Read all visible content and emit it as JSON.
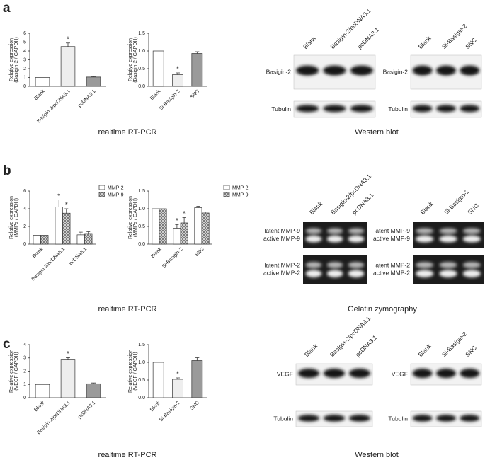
{
  "chart_data": [
    {
      "type": "bar",
      "ylabel": [
        "Relative expression",
        "(Basigin-2 / GAPDH)"
      ],
      "categories": [
        "Blank",
        "Basigin-2/pcDNA3.1",
        "pcDNA3.1"
      ],
      "values": [
        1,
        4.5,
        1.05
      ],
      "errors": [
        null,
        0.4,
        0.07
      ],
      "colors": [
        "#ffffff",
        "#eeeeee",
        "#9a9a9a"
      ],
      "ylim": [
        0,
        6
      ],
      "yticks": [
        0,
        1,
        2,
        3,
        4,
        5,
        6
      ],
      "annotations": [
        {
          "text": "*",
          "x": "Basigin-2/pcDNA3.1"
        }
      ]
    },
    {
      "type": "bar",
      "ylabel": [
        "Relative expression",
        "(Basigin-2 / GAPDH)"
      ],
      "categories": [
        "Blank",
        "Si-Basigin-2",
        "SNC"
      ],
      "values": [
        1,
        0.33,
        0.93
      ],
      "errors": [
        null,
        0.05,
        0.05
      ],
      "colors": [
        "#ffffff",
        "#eeeeee",
        "#9a9a9a"
      ],
      "ylim": [
        0,
        1.5
      ],
      "yticks": [
        {
          "value": 0,
          "label": "0.0"
        },
        0.5,
        {
          "value": 1,
          "label": "1.0"
        },
        1.5
      ],
      "annotations": [
        {
          "text": "*",
          "x": "Si-Basigin-2"
        }
      ]
    },
    {
      "type": "grouped-bar",
      "ylabel": [
        "Relative expression",
        "(MMPs / GAPDH)"
      ],
      "categories": [
        "Blank",
        "Basigin-2/pcDNA3.1",
        "pcDNA3.1"
      ],
      "series": [
        {
          "name": "MMP-2",
          "color": "#ffffff",
          "values": [
            1,
            4.2,
            1.05
          ],
          "errors": [
            null,
            0.8,
            0.3
          ]
        },
        {
          "name": "MMP-9",
          "color": "#dddddd",
          "hatch": "cross",
          "values": [
            1,
            3.5,
            1.2
          ],
          "errors": [
            null,
            0.5,
            0.2
          ]
        }
      ],
      "ylim": [
        0,
        6
      ],
      "yticks": [
        0,
        2,
        4,
        6
      ],
      "annotations": [
        {
          "text": "*",
          "x": "Basigin-2/pcDNA3.1",
          "series": "MMP-2"
        },
        {
          "text": "*",
          "x": "Basigin-2/pcDNA3.1",
          "series": "MMP-9"
        }
      ]
    },
    {
      "type": "grouped-bar",
      "ylabel": [
        "Relative expression",
        "(MMPs / GAPDH)"
      ],
      "categories": [
        "Blank",
        "Si-Basigin-2",
        "SNC"
      ],
      "series": [
        {
          "name": "MMP-2",
          "color": "#ffffff",
          "values": [
            1,
            0.45,
            1.03
          ],
          "errors": [
            null,
            0.1,
            0.04
          ]
        },
        {
          "name": "MMP-9",
          "color": "#dddddd",
          "hatch": "cross",
          "values": [
            1,
            0.6,
            0.88
          ],
          "errors": [
            null,
            0.15,
            0.03
          ]
        }
      ],
      "ylim": [
        0,
        1.5
      ],
      "yticks": [
        {
          "value": 0,
          "label": "0.0"
        },
        0.5,
        {
          "value": 1,
          "label": "1.0"
        },
        1.5
      ],
      "annotations": [
        {
          "text": "*",
          "x": "Si-Basigin-2",
          "series": "MMP-2"
        },
        {
          "text": "*",
          "x": "Si-Basigin-2",
          "series": "MMP-9"
        }
      ]
    },
    {
      "type": "bar",
      "ylabel": [
        "Relative expression",
        "(VEGF / GAPDH)"
      ],
      "categories": [
        "Blank",
        "Basigin-2/pcDNA3.1",
        "pcDNA3.1"
      ],
      "values": [
        1,
        2.9,
        1.05
      ],
      "errors": [
        null,
        0.12,
        0.06
      ],
      "colors": [
        "#ffffff",
        "#eeeeee",
        "#9a9a9a"
      ],
      "ylim": [
        0,
        4
      ],
      "yticks": [
        0,
        1,
        2,
        3,
        4
      ],
      "annotations": [
        {
          "text": "*",
          "x": "Basigin-2/pcDNA3.1"
        }
      ]
    },
    {
      "type": "bar",
      "ylabel": [
        "Relative expression",
        "(VEGF / GAPDH)"
      ],
      "categories": [
        "Blank",
        "Si-Basigin-2",
        "SNC"
      ],
      "values": [
        1,
        0.52,
        1.05
      ],
      "errors": [
        null,
        0.04,
        0.08
      ],
      "colors": [
        "#ffffff",
        "#eeeeee",
        "#9a9a9a"
      ],
      "ylim": [
        0,
        1.5
      ],
      "yticks": [
        {
          "value": 0,
          "label": "0.0"
        },
        0.5,
        {
          "value": 1,
          "label": "1.0"
        },
        1.5
      ],
      "annotations": [
        {
          "text": "*",
          "x": "Si-Basigin-2"
        }
      ]
    }
  ],
  "panels": [
    {
      "letter": "a",
      "captions": [
        "realtime RT-PCR",
        "Western blot"
      ],
      "blots": [
        {
          "lanes": [
            "Blank",
            "Basigin-2/pcDNA3.1",
            "pcDNA3.1"
          ],
          "rows": [
            [
              "Basigin-2"
            ],
            [
              "Tubulin"
            ]
          ]
        },
        {
          "lanes": [
            "Blank",
            "Si-Basigin-2",
            "SNC"
          ],
          "rows": [
            [
              "Basigin-2"
            ],
            [
              "Tubulin"
            ]
          ]
        }
      ]
    },
    {
      "letter": "b",
      "captions": [
        "realtime RT-PCR",
        "Gelatin zymography"
      ],
      "blots": [
        {
          "lanes": [
            "Blank",
            "Basigin-2/pcDNA3.1",
            "pcDNA3.1"
          ],
          "rows": [
            [
              "latent MMP-9",
              "active MMP-9"
            ],
            [
              "latent MMP-2",
              "active MMP-2"
            ]
          ]
        },
        {
          "lanes": [
            "Blank",
            "Si-Basigin-2",
            "SNC"
          ],
          "rows": [
            [
              "latent MMP-9",
              "active MMP-9"
            ],
            [
              "latent MMP-2",
              "active MMP-2"
            ]
          ]
        }
      ]
    },
    {
      "letter": "c",
      "captions": [
        "realtime RT-PCR",
        "Western blot"
      ],
      "blots": [
        {
          "lanes": [
            "Blank",
            "Basigin-2/pcDNA3.1",
            "pcDNA3.1"
          ],
          "rows": [
            [
              "VEGF"
            ],
            [
              "Tubulin"
            ]
          ]
        },
        {
          "lanes": [
            "Blank",
            "Si-Basigin-2",
            "SNC"
          ],
          "rows": [
            [
              "VEGF"
            ],
            [
              "Tubulin"
            ]
          ]
        }
      ]
    }
  ]
}
